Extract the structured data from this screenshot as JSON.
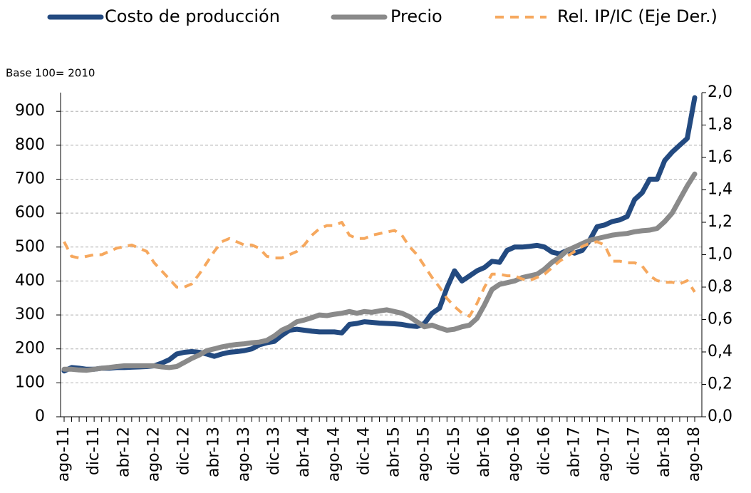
{
  "chart_data": {
    "type": "line",
    "annotation": "Base 100= 2010",
    "categories": [
      "ago-11",
      null,
      null,
      null,
      "dic-11",
      null,
      null,
      null,
      "abr-12",
      null,
      null,
      null,
      "ago-12",
      null,
      null,
      null,
      "dic-12",
      null,
      null,
      null,
      "abr-13",
      null,
      null,
      null,
      "ago-13",
      null,
      null,
      null,
      "dic-13",
      null,
      null,
      null,
      "abr-14",
      null,
      null,
      null,
      "ago-14",
      null,
      null,
      null,
      "dic-14",
      null,
      null,
      null,
      "abr-15",
      null,
      null,
      null,
      "ago-15",
      null,
      null,
      null,
      "dic-15",
      null,
      null,
      null,
      "abr-16",
      null,
      null,
      null,
      "ago-16",
      null,
      null,
      null,
      "dic-16",
      null,
      null,
      null,
      "abr-17",
      null,
      null,
      null,
      "ago-17",
      null,
      null,
      null,
      "dic-17",
      null,
      null,
      null,
      "abr-18",
      null,
      null,
      null,
      "ago-18"
    ],
    "series": [
      {
        "name": "Costo de producción",
        "color": "#234a80",
        "axis": "y",
        "values": [
          135,
          145,
          143,
          140,
          140,
          143,
          143,
          145,
          145,
          146,
          147,
          148,
          150,
          158,
          168,
          185,
          190,
          192,
          190,
          185,
          178,
          185,
          190,
          192,
          195,
          200,
          212,
          218,
          222,
          240,
          255,
          258,
          255,
          252,
          250,
          250,
          250,
          247,
          272,
          275,
          280,
          278,
          276,
          275,
          274,
          272,
          268,
          266,
          275,
          305,
          320,
          380,
          430,
          400,
          415,
          430,
          440,
          458,
          455,
          490,
          500,
          500,
          502,
          505,
          500,
          485,
          480,
          490,
          482,
          490,
          520,
          560,
          565,
          575,
          580,
          590,
          640,
          660,
          700,
          700,
          755,
          780,
          800,
          820,
          940
        ]
      },
      {
        "name": "Precio",
        "color": "#8a8a8a",
        "axis": "y",
        "values": [
          140,
          140,
          138,
          137,
          140,
          143,
          145,
          148,
          150,
          150,
          150,
          150,
          150,
          147,
          145,
          148,
          160,
          172,
          182,
          195,
          200,
          206,
          210,
          213,
          215,
          218,
          220,
          225,
          238,
          255,
          265,
          280,
          285,
          292,
          300,
          298,
          302,
          305,
          310,
          305,
          310,
          308,
          312,
          315,
          310,
          305,
          295,
          280,
          265,
          270,
          262,
          255,
          258,
          265,
          270,
          290,
          330,
          375,
          390,
          395,
          400,
          410,
          415,
          420,
          435,
          455,
          470,
          490,
          500,
          510,
          520,
          525,
          530,
          535,
          538,
          540,
          545,
          548,
          550,
          555,
          575,
          600,
          640,
          680,
          715
        ]
      },
      {
        "name": "Rel. IP/IC (Eje Der.)",
        "color": "#f6a85e",
        "axis": "y2",
        "dashed": true,
        "values": [
          1.08,
          0.99,
          0.98,
          0.99,
          1.0,
          1.0,
          1.02,
          1.04,
          1.05,
          1.06,
          1.04,
          1.02,
          0.95,
          0.9,
          0.85,
          0.8,
          0.8,
          0.82,
          0.88,
          0.95,
          1.02,
          1.08,
          1.1,
          1.08,
          1.06,
          1.06,
          1.04,
          0.99,
          0.98,
          0.98,
          1.0,
          1.02,
          1.06,
          1.12,
          1.16,
          1.18,
          1.18,
          1.2,
          1.12,
          1.1,
          1.1,
          1.12,
          1.13,
          1.14,
          1.15,
          1.12,
          1.05,
          1.0,
          0.93,
          0.86,
          0.8,
          0.73,
          0.68,
          0.64,
          0.62,
          0.7,
          0.8,
          0.88,
          0.88,
          0.87,
          0.87,
          0.85,
          0.84,
          0.86,
          0.88,
          0.92,
          0.96,
          0.99,
          1.02,
          1.05,
          1.07,
          1.08,
          1.06,
          0.96,
          0.96,
          0.95,
          0.95,
          0.93,
          0.87,
          0.84,
          0.83,
          0.83,
          0.82,
          0.84,
          0.77
        ]
      }
    ],
    "ylim": [
      0,
      955
    ],
    "yticks": [
      0,
      100,
      200,
      300,
      400,
      500,
      600,
      700,
      800,
      900
    ],
    "y2lim": [
      0,
      2
    ],
    "y2ticks": [
      {
        "value": 0,
        "label": "0,0"
      },
      {
        "value": 0.2,
        "label": "0,2"
      },
      {
        "value": 0.4,
        "label": "0,4"
      },
      {
        "value": 0.6,
        "label": "0,6"
      },
      {
        "value": 0.8,
        "label": "0,8"
      },
      {
        "value": 1,
        "label": "1,0"
      },
      {
        "value": 1.2,
        "label": "1,2"
      },
      {
        "value": 1.4,
        "label": "1,4"
      },
      {
        "value": 1.6,
        "label": "1,6"
      },
      {
        "value": 1.8,
        "label": "1,8"
      },
      {
        "value": 2,
        "label": "2,0"
      }
    ],
    "grid": true
  }
}
